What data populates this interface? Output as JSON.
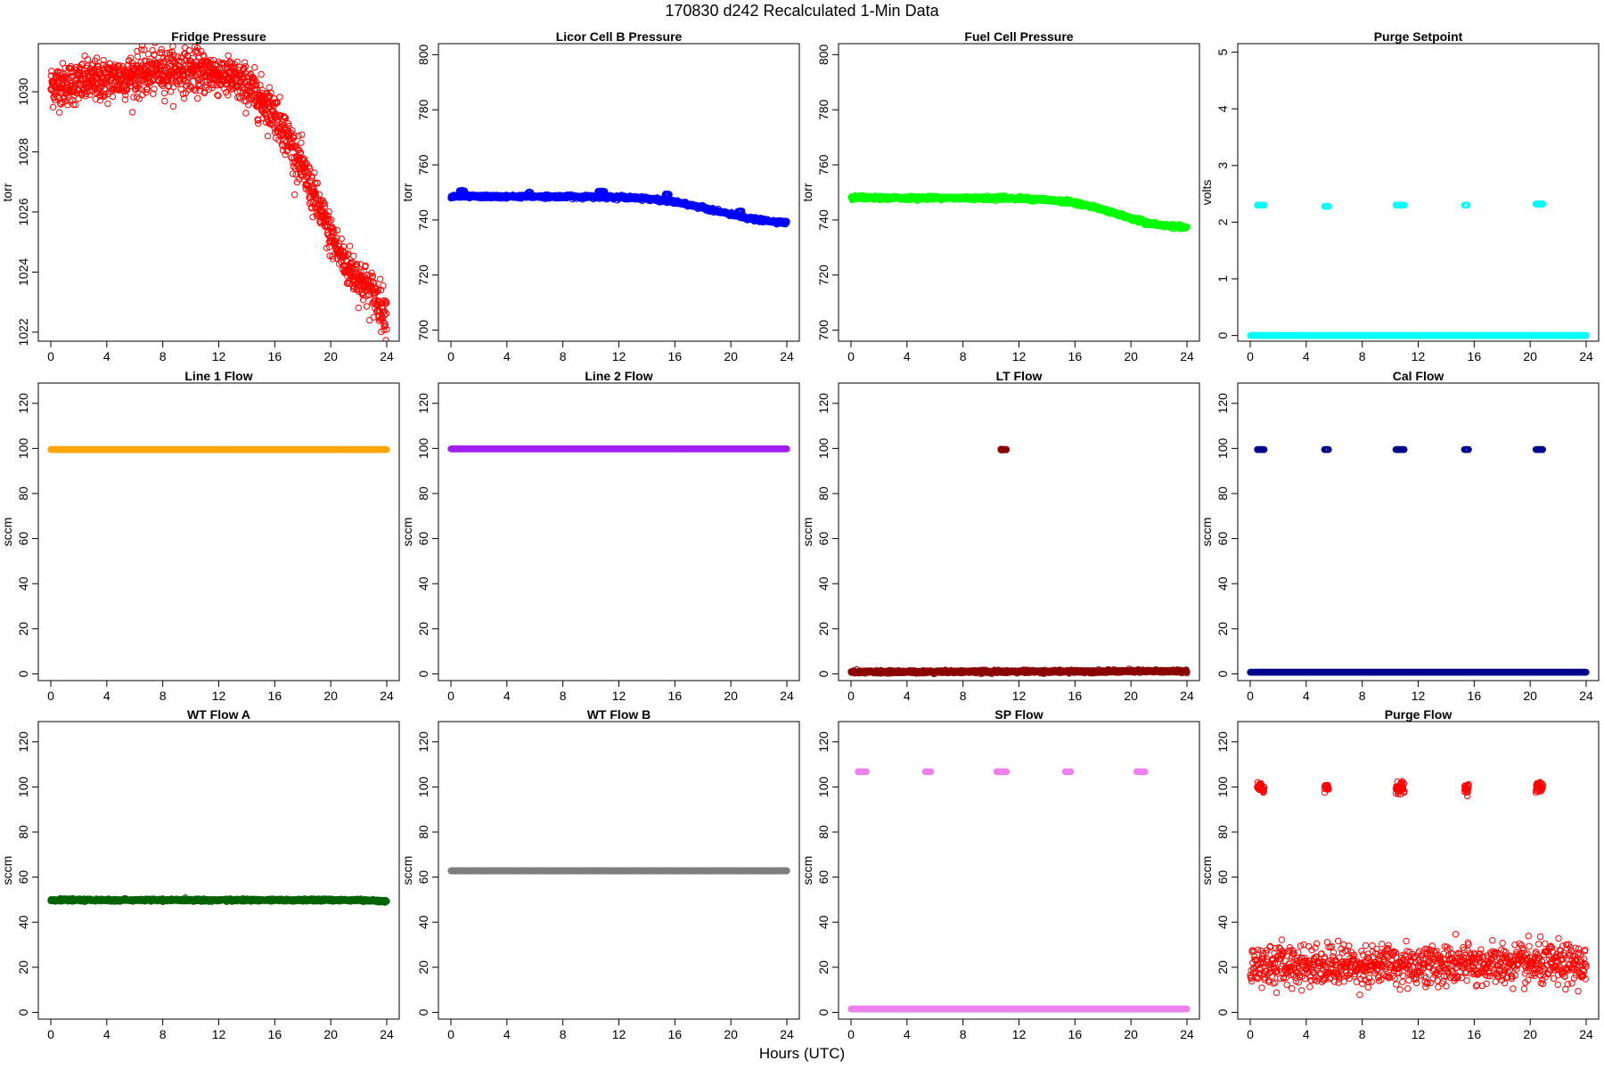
{
  "figure": {
    "title": "170830   d242   Recalculated 1-Min Data",
    "xlabel": "Hours (UTC)"
  },
  "chart_data": [
    {
      "type": "scatter",
      "title": "Fridge Pressure",
      "ylabel": "torr",
      "xlim": [
        0,
        24
      ],
      "ylim": [
        1021.7,
        1031.6
      ],
      "xticks": [
        0,
        4,
        8,
        12,
        16,
        20,
        24
      ],
      "yticks": [
        1022,
        1024,
        1026,
        1028,
        1030
      ],
      "color": "#ff0000",
      "marker": "open-circle",
      "noise": 0.35,
      "series": [
        {
          "segments": [
            {
              "x": [
                0,
                24
              ],
              "y": [
                1030.2,
                1022.6
              ],
              "shape": "curve",
              "curve": [
                [
                  0,
                  1030.2
                ],
                [
                  4,
                  1030.4
                ],
                [
                  8,
                  1030.7
                ],
                [
                  10,
                  1030.7
                ],
                [
                  12,
                  1030.6
                ],
                [
                  14,
                  1030.2
                ],
                [
                  16,
                  1029.3
                ],
                [
                  17,
                  1028.4
                ],
                [
                  18,
                  1027.4
                ],
                [
                  19,
                  1026.3
                ],
                [
                  20,
                  1025.2
                ],
                [
                  21,
                  1024.3
                ],
                [
                  22,
                  1023.8
                ],
                [
                  23,
                  1023.3
                ],
                [
                  24,
                  1022.6
                ]
              ]
            }
          ]
        }
      ],
      "points_per_hour": 60
    },
    {
      "type": "scatter",
      "title": "Licor Cell B Pressure",
      "ylabel": "torr",
      "xlim": [
        0,
        24
      ],
      "ylim": [
        696,
        804
      ],
      "xticks": [
        0,
        4,
        8,
        12,
        16,
        20,
        24
      ],
      "yticks": [
        700,
        720,
        740,
        760,
        780,
        800
      ],
      "color": "#0000ff",
      "marker": "open-circle",
      "noise": 0.3,
      "series": [
        {
          "segments": [
            {
              "shape": "curve",
              "curve": [
                [
                  0,
                  748.5
                ],
                [
                  4,
                  748.5
                ],
                [
                  8,
                  748.5
                ],
                [
                  12,
                  748.3
                ],
                [
                  14,
                  747.8
                ],
                [
                  16,
                  746.5
                ],
                [
                  18,
                  744.5
                ],
                [
                  20,
                  742.0
                ],
                [
                  21,
                  740.8
                ],
                [
                  22,
                  740.0
                ],
                [
                  24,
                  739.0
                ]
              ]
            }
          ]
        }
      ],
      "points_per_hour": 60,
      "extra": [
        {
          "x": [
            0.6,
            1.0
          ],
          "y": 750.5
        },
        {
          "x": [
            5.5,
            5.7
          ],
          "y": 750.0
        },
        {
          "x": [
            10.5,
            11.0
          ],
          "y": 750.3
        },
        {
          "x": [
            15.3,
            15.6
          ],
          "y": 749.2
        },
        {
          "x": [
            20.5,
            20.8
          ],
          "y": 743.0
        }
      ]
    },
    {
      "type": "scatter",
      "title": "Fuel Cell Pressure",
      "ylabel": "torr",
      "xlim": [
        0,
        24
      ],
      "ylim": [
        696,
        804
      ],
      "xticks": [
        0,
        4,
        8,
        12,
        16,
        20,
        24
      ],
      "yticks": [
        700,
        720,
        740,
        760,
        780,
        800
      ],
      "color": "#00ff00",
      "marker": "open-circle",
      "noise": 0.3,
      "series": [
        {
          "segments": [
            {
              "shape": "curve",
              "curve": [
                [
                  0,
                  748.0
                ],
                [
                  4,
                  748.0
                ],
                [
                  8,
                  748.0
                ],
                [
                  12,
                  747.8
                ],
                [
                  14,
                  747.3
                ],
                [
                  16,
                  746.3
                ],
                [
                  18,
                  743.8
                ],
                [
                  20,
                  740.5
                ],
                [
                  21,
                  739.0
                ],
                [
                  22,
                  738.2
                ],
                [
                  24,
                  737.2
                ]
              ]
            }
          ]
        }
      ],
      "points_per_hour": 60,
      "extra": [
        {
          "x": [
            0.6,
            1.0
          ],
          "y": 748.6
        },
        {
          "x": [
            5.5,
            5.7
          ],
          "y": 748.5
        },
        {
          "x": [
            10.5,
            11.0
          ],
          "y": 748.5
        },
        {
          "x": [
            15.3,
            15.6
          ],
          "y": 747.2
        },
        {
          "x": [
            20.5,
            20.8
          ],
          "y": 740.2
        }
      ]
    },
    {
      "type": "scatter",
      "title": "Purge Setpoint",
      "ylabel": "volts",
      "xlim": [
        0,
        24
      ],
      "ylim": [
        -0.1,
        5.15
      ],
      "xticks": [
        0,
        4,
        8,
        12,
        16,
        20,
        24
      ],
      "yticks": [
        0,
        1,
        2,
        3,
        4,
        5
      ],
      "color": "#00ffff",
      "marker": "open-circle",
      "noise": 0.0,
      "series": [
        {
          "segments": [
            {
              "shape": "curve",
              "curve": [
                [
                  0,
                  0
                ],
                [
                  24,
                  0
                ]
              ]
            }
          ]
        }
      ],
      "points_per_hour": 60,
      "extra": [
        {
          "x": [
            0.5,
            1.0
          ],
          "y": 2.3
        },
        {
          "x": [
            5.3,
            5.6
          ],
          "y": 2.28
        },
        {
          "x": [
            10.4,
            11.0
          ],
          "y": 2.3
        },
        {
          "x": [
            15.3,
            15.5
          ],
          "y": 2.3
        },
        {
          "x": [
            20.4,
            20.9
          ],
          "y": 2.32
        }
      ]
    },
    {
      "type": "scatter",
      "title": "Line 1 Flow",
      "ylabel": "sccm",
      "xlim": [
        0,
        24
      ],
      "ylim": [
        -3,
        129
      ],
      "xticks": [
        0,
        4,
        8,
        12,
        16,
        20,
        24
      ],
      "yticks": [
        0,
        20,
        40,
        60,
        80,
        100,
        120
      ],
      "color": "#ffa500",
      "marker": "open-circle",
      "noise": 0.0,
      "series": [
        {
          "segments": [
            {
              "shape": "curve",
              "curve": [
                [
                  0,
                  99.5
                ],
                [
                  24,
                  99.5
                ]
              ]
            }
          ]
        }
      ],
      "points_per_hour": 60
    },
    {
      "type": "scatter",
      "title": "Line 2 Flow",
      "ylabel": "sccm",
      "xlim": [
        0,
        24
      ],
      "ylim": [
        -3,
        129
      ],
      "xticks": [
        0,
        4,
        8,
        12,
        16,
        20,
        24
      ],
      "yticks": [
        0,
        20,
        40,
        60,
        80,
        100,
        120
      ],
      "color": "#a020f0",
      "marker": "open-circle",
      "noise": 0.0,
      "series": [
        {
          "segments": [
            {
              "shape": "curve",
              "curve": [
                [
                  0,
                  99.8
                ],
                [
                  24,
                  99.8
                ]
              ]
            }
          ]
        }
      ],
      "points_per_hour": 60
    },
    {
      "type": "scatter",
      "title": "LT Flow",
      "ylabel": "sccm",
      "xlim": [
        0,
        24
      ],
      "ylim": [
        -3,
        129
      ],
      "xticks": [
        0,
        4,
        8,
        12,
        16,
        20,
        24
      ],
      "yticks": [
        0,
        20,
        40,
        60,
        80,
        100,
        120
      ],
      "color": "#8b0000",
      "marker": "open-circle",
      "noise": 0.3,
      "series": [
        {
          "segments": [
            {
              "shape": "curve",
              "curve": [
                [
                  0,
                  0.8
                ],
                [
                  24,
                  1.2
                ]
              ]
            }
          ]
        }
      ],
      "points_per_hour": 60,
      "extra": [
        {
          "x": [
            10.7,
            11.1
          ],
          "y": 99.5
        }
      ]
    },
    {
      "type": "scatter",
      "title": "Cal Flow",
      "ylabel": "sccm",
      "xlim": [
        0,
        24
      ],
      "ylim": [
        -3,
        129
      ],
      "xticks": [
        0,
        4,
        8,
        12,
        16,
        20,
        24
      ],
      "yticks": [
        0,
        20,
        40,
        60,
        80,
        100,
        120
      ],
      "color": "#00008b",
      "marker": "open-circle",
      "noise": 0.0,
      "series": [
        {
          "segments": [
            {
              "shape": "curve",
              "curve": [
                [
                  0,
                  0.7
                ],
                [
                  24,
                  0.7
                ]
              ]
            }
          ]
        }
      ],
      "points_per_hour": 60,
      "extra": [
        {
          "x": [
            0.5,
            1.0
          ],
          "y": 99.5
        },
        {
          "x": [
            5.3,
            5.6
          ],
          "y": 99.5
        },
        {
          "x": [
            10.4,
            11.0
          ],
          "y": 99.5
        },
        {
          "x": [
            15.3,
            15.6
          ],
          "y": 99.5
        },
        {
          "x": [
            20.4,
            20.9
          ],
          "y": 99.5
        }
      ]
    },
    {
      "type": "scatter",
      "title": "WT Flow A",
      "ylabel": "sccm",
      "xlim": [
        0,
        24
      ],
      "ylim": [
        -3,
        129
      ],
      "xticks": [
        0,
        4,
        8,
        12,
        16,
        20,
        24
      ],
      "yticks": [
        0,
        20,
        40,
        60,
        80,
        100,
        120
      ],
      "color": "#006400",
      "marker": "open-circle",
      "noise": 0.25,
      "series": [
        {
          "segments": [
            {
              "shape": "curve",
              "curve": [
                [
                  0,
                  49.8
                ],
                [
                  22,
                  49.8
                ],
                [
                  24,
                  49.3
                ]
              ]
            }
          ]
        }
      ],
      "points_per_hour": 60
    },
    {
      "type": "scatter",
      "title": "WT Flow B",
      "ylabel": "sccm",
      "xlim": [
        0,
        24
      ],
      "ylim": [
        -3,
        129
      ],
      "xticks": [
        0,
        4,
        8,
        12,
        16,
        20,
        24
      ],
      "yticks": [
        0,
        20,
        40,
        60,
        80,
        100,
        120
      ],
      "color": "#7f7f7f",
      "marker": "open-circle",
      "noise": 0.0,
      "series": [
        {
          "segments": [
            {
              "shape": "curve",
              "curve": [
                [
                  0,
                  62.8
                ],
                [
                  24,
                  62.8
                ]
              ]
            }
          ]
        }
      ],
      "points_per_hour": 60
    },
    {
      "type": "scatter",
      "title": "SP Flow",
      "ylabel": "sccm",
      "xlim": [
        0,
        24
      ],
      "ylim": [
        -3,
        129
      ],
      "xticks": [
        0,
        4,
        8,
        12,
        16,
        20,
        24
      ],
      "yticks": [
        0,
        20,
        40,
        60,
        80,
        100,
        120
      ],
      "color": "#ee82ee",
      "marker": "open-circle",
      "noise": 0.0,
      "series": [
        {
          "segments": [
            {
              "shape": "curve",
              "curve": [
                [
                  0,
                  1.5
                ],
                [
                  24,
                  1.5
                ]
              ]
            }
          ]
        }
      ],
      "points_per_hour": 60,
      "extra": [
        {
          "x": [
            0.5,
            1.1
          ],
          "y": 106.8
        },
        {
          "x": [
            5.3,
            5.7
          ],
          "y": 106.8
        },
        {
          "x": [
            10.4,
            11.1
          ],
          "y": 106.8
        },
        {
          "x": [
            15.3,
            15.7
          ],
          "y": 106.8
        },
        {
          "x": [
            20.4,
            21.0
          ],
          "y": 106.8
        }
      ]
    },
    {
      "type": "scatter",
      "title": "Purge Flow",
      "ylabel": "sccm",
      "xlim": [
        0,
        24
      ],
      "ylim": [
        -3,
        129
      ],
      "xticks": [
        0,
        4,
        8,
        12,
        16,
        20,
        24
      ],
      "yticks": [
        0,
        20,
        40,
        60,
        80,
        100,
        120
      ],
      "color": "#ff0000",
      "marker": "open-circle",
      "noise": 4.5,
      "series": [
        {
          "segments": [
            {
              "shape": "curve",
              "curve": [
                [
                  0,
                  21
                ],
                [
                  24,
                  21
                ]
              ]
            }
          ]
        }
      ],
      "points_per_hour": 40,
      "extra": [
        {
          "x": [
            0.5,
            1.0
          ],
          "y": 99.5,
          "noise": 1.2
        },
        {
          "x": [
            5.3,
            5.6
          ],
          "y": 99.8,
          "noise": 1.2
        },
        {
          "x": [
            10.4,
            11.0
          ],
          "y": 99.8,
          "noise": 1.2
        },
        {
          "x": [
            15.3,
            15.6
          ],
          "y": 99.3,
          "noise": 1.0
        },
        {
          "x": [
            20.4,
            20.9
          ],
          "y": 100.0,
          "noise": 1.2
        }
      ]
    }
  ]
}
